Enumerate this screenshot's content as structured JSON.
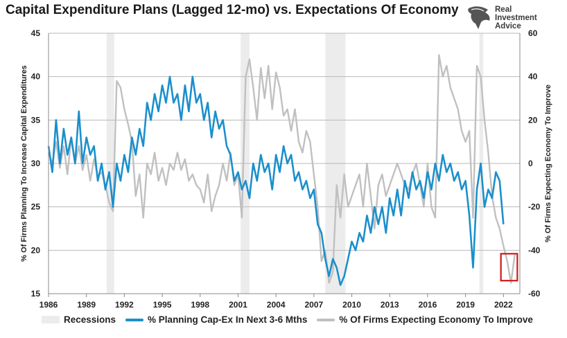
{
  "title": "Capital Expenditure Plans (Lagged 12-mo) vs. Expectations Of Economy",
  "logo": {
    "text": "Real\nInvestment\nAdvice",
    "icon": "eagle-icon"
  },
  "colors": {
    "capex": "#1b8fcc",
    "expect": "#c0c0c0",
    "recession": "#ececec",
    "highlight": "#d01818"
  },
  "legend": {
    "recessions": "Recessions",
    "capex": "% Planning Cap-Ex In Next 3-6 Mths",
    "expect": "% Of Firms Expecting Economy To Improve"
  },
  "chart_data": {
    "type": "line",
    "title": "Capital Expenditure Plans (Lagged 12-mo) vs. Expectations Of Economy",
    "xlabel": "",
    "ylabel": "% Of Firms Planning To Increase Capital Expenditures",
    "y2label": "% Of Firms Expecting Economy To Improve",
    "xlim": [
      1986,
      2023.3
    ],
    "ylim": [
      15,
      45
    ],
    "y2lim": [
      -60,
      60
    ],
    "x_ticks": [
      "1986",
      "1989",
      "1992",
      "1995",
      "1998",
      "2001",
      "2004",
      "2007",
      "2010",
      "2013",
      "2016",
      "2019",
      "2022"
    ],
    "y_ticks": [
      "15",
      "20",
      "25",
      "30",
      "35",
      "40",
      "45"
    ],
    "y2_ticks": [
      "-60",
      "-40",
      "-20",
      "0",
      "20",
      "40",
      "60"
    ],
    "grid": true,
    "legend_position": "bottom",
    "recessions": [
      [
        1990.6,
        1991.2
      ],
      [
        2001.2,
        2001.9
      ],
      [
        2007.9,
        2009.5
      ],
      [
        2020.1,
        2020.4
      ]
    ],
    "highlight_box": {
      "x": [
        2021.8,
        2023.1
      ],
      "y": [
        16.5,
        19.6
      ]
    },
    "series": [
      {
        "name": "% Planning Cap-Ex In Next 3-6 Mths",
        "axis": "left",
        "x": [
          1986.0,
          1986.3,
          1986.6,
          1986.9,
          1987.2,
          1987.5,
          1987.8,
          1988.1,
          1988.4,
          1988.7,
          1989.0,
          1989.3,
          1989.6,
          1989.9,
          1990.2,
          1990.5,
          1990.8,
          1991.1,
          1991.4,
          1991.7,
          1992.0,
          1992.3,
          1992.6,
          1992.9,
          1993.2,
          1993.5,
          1993.8,
          1994.1,
          1994.4,
          1994.7,
          1995.0,
          1995.3,
          1995.6,
          1995.9,
          1996.2,
          1996.5,
          1996.8,
          1997.1,
          1997.4,
          1997.7,
          1998.0,
          1998.3,
          1998.6,
          1998.9,
          1999.2,
          1999.5,
          1999.8,
          2000.1,
          2000.4,
          2000.7,
          2001.0,
          2001.3,
          2001.6,
          2001.9,
          2002.2,
          2002.5,
          2002.8,
          2003.1,
          2003.4,
          2003.7,
          2004.0,
          2004.3,
          2004.6,
          2004.9,
          2005.2,
          2005.5,
          2005.8,
          2006.1,
          2006.4,
          2006.7,
          2007.0,
          2007.3,
          2007.6,
          2007.9,
          2008.2,
          2008.5,
          2008.8,
          2009.1,
          2009.4,
          2009.7,
          2010.0,
          2010.3,
          2010.6,
          2010.9,
          2011.2,
          2011.5,
          2011.8,
          2012.1,
          2012.4,
          2012.7,
          2013.0,
          2013.3,
          2013.6,
          2013.9,
          2014.2,
          2014.5,
          2014.8,
          2015.1,
          2015.4,
          2015.7,
          2016.0,
          2016.3,
          2016.6,
          2016.9,
          2017.2,
          2017.5,
          2017.8,
          2018.1,
          2018.4,
          2018.7,
          2019.0,
          2019.3,
          2019.6,
          2019.9,
          2020.2,
          2020.5,
          2020.8,
          2021.1,
          2021.4,
          2021.7,
          2022.0
        ],
        "values": [
          32,
          29,
          35,
          30,
          34,
          31,
          33,
          30,
          36,
          30,
          33,
          31,
          32,
          28,
          30,
          27,
          29,
          25,
          30,
          28,
          31,
          29,
          33,
          31,
          34,
          32,
          37,
          35,
          38,
          36,
          39,
          37,
          40,
          37,
          38,
          35,
          39,
          36,
          40,
          37,
          38,
          35,
          37,
          33,
          36,
          34,
          35,
          32,
          31,
          28,
          29,
          27,
          28,
          26,
          30,
          28,
          31,
          29,
          30,
          27,
          31,
          29,
          32,
          30,
          31,
          28,
          29,
          27,
          28,
          26,
          27,
          23,
          22,
          19,
          17,
          19,
          18,
          16,
          17,
          19,
          21,
          20,
          22,
          21,
          24,
          22,
          25,
          23,
          25,
          22,
          26,
          24,
          27,
          24,
          28,
          26,
          29,
          27,
          28,
          26,
          29,
          27,
          30,
          28,
          31,
          29,
          30,
          28,
          29,
          27,
          28,
          24,
          18,
          27,
          30,
          25,
          27,
          26,
          29,
          28,
          23
        ]
      },
      {
        "name": "% Of Firms Expecting Economy To Improve",
        "axis": "right",
        "x": [
          1986.0,
          1986.3,
          1986.6,
          1986.9,
          1987.2,
          1987.5,
          1987.8,
          1988.1,
          1988.4,
          1988.7,
          1989.0,
          1989.3,
          1989.6,
          1989.9,
          1990.2,
          1990.5,
          1990.8,
          1991.1,
          1991.4,
          1991.7,
          1992.0,
          1992.3,
          1992.6,
          1992.9,
          1993.2,
          1993.5,
          1993.8,
          1994.1,
          1994.4,
          1994.7,
          1995.0,
          1995.3,
          1995.6,
          1995.9,
          1996.2,
          1996.5,
          1996.8,
          1997.1,
          1997.4,
          1997.7,
          1998.0,
          1998.3,
          1998.6,
          1998.9,
          1999.2,
          1999.5,
          1999.8,
          2000.1,
          2000.4,
          2000.7,
          2001.0,
          2001.3,
          2001.6,
          2001.9,
          2002.2,
          2002.5,
          2002.8,
          2003.1,
          2003.4,
          2003.7,
          2004.0,
          2004.3,
          2004.6,
          2004.9,
          2005.2,
          2005.5,
          2005.8,
          2006.1,
          2006.4,
          2006.7,
          2007.0,
          2007.3,
          2007.6,
          2007.9,
          2008.2,
          2008.5,
          2008.8,
          2009.1,
          2009.4,
          2009.7,
          2010.0,
          2010.3,
          2010.6,
          2010.9,
          2011.2,
          2011.5,
          2011.8,
          2012.1,
          2012.4,
          2012.7,
          2013.0,
          2013.3,
          2013.6,
          2013.9,
          2014.2,
          2014.5,
          2014.8,
          2015.1,
          2015.4,
          2015.7,
          2016.0,
          2016.3,
          2016.6,
          2016.9,
          2017.2,
          2017.5,
          2017.8,
          2018.1,
          2018.4,
          2018.7,
          2019.0,
          2019.3,
          2019.6,
          2019.9,
          2020.2,
          2020.5,
          2020.8,
          2021.1,
          2021.4,
          2021.7,
          2022.0,
          2022.3,
          2022.6,
          2022.9
        ],
        "values": [
          5,
          0,
          10,
          -2,
          8,
          -5,
          12,
          0,
          8,
          -3,
          4,
          -8,
          2,
          -6,
          -4,
          -10,
          -18,
          -22,
          38,
          35,
          25,
          18,
          10,
          -15,
          -5,
          -25,
          0,
          -5,
          5,
          -8,
          -2,
          -10,
          0,
          -3,
          5,
          -3,
          2,
          -8,
          -5,
          -10,
          -12,
          -18,
          -5,
          -22,
          -15,
          -10,
          0,
          -8,
          5,
          -10,
          -5,
          -25,
          40,
          48,
          35,
          20,
          44,
          30,
          45,
          25,
          42,
          35,
          22,
          25,
          15,
          25,
          10,
          5,
          15,
          10,
          -5,
          -20,
          -45,
          -40,
          -55,
          -50,
          -10,
          -25,
          -5,
          -20,
          -15,
          -10,
          -5,
          -20,
          0,
          -15,
          -30,
          -10,
          -5,
          -15,
          -10,
          -5,
          0,
          -5,
          -10,
          -12,
          -5,
          0,
          -10,
          -20,
          0,
          -20,
          -25,
          50,
          40,
          45,
          35,
          30,
          25,
          15,
          10,
          15,
          -25,
          45,
          40,
          20,
          5,
          -15,
          -25,
          -30,
          -38,
          -45,
          -55,
          -42
        ]
      }
    ]
  }
}
